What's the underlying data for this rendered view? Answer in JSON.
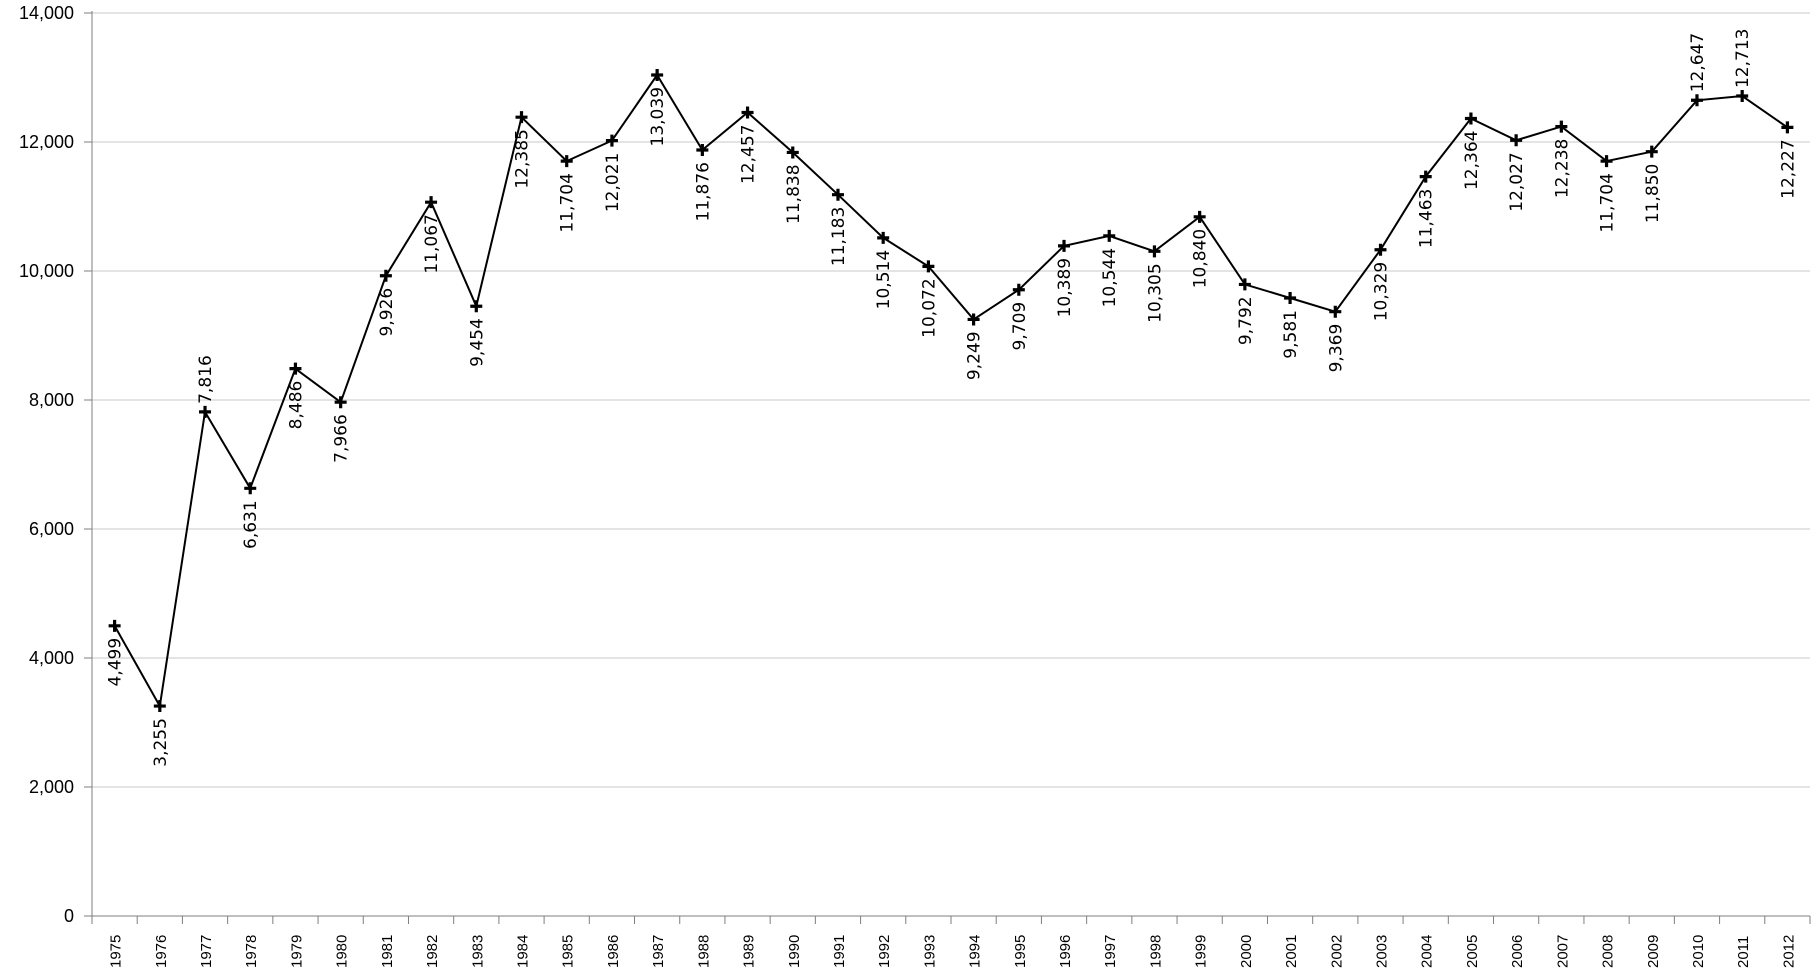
{
  "chart_data": {
    "type": "line",
    "title": "",
    "xlabel": "",
    "ylabel": "",
    "ylim": [
      0,
      14000
    ],
    "yticks": [
      "0",
      "2,000",
      "4,000",
      "6,000",
      "8,000",
      "10,000",
      "12,000",
      "14,000"
    ],
    "grid": "horizontal",
    "legend": "none",
    "categories": [
      "1975",
      "1976",
      "1977",
      "1978",
      "1979",
      "1980",
      "1981",
      "1982",
      "1983",
      "1984",
      "1985",
      "1986",
      "1987",
      "1988",
      "1989",
      "1990",
      "1991",
      "1992",
      "1993",
      "1994",
      "1995",
      "1996",
      "1997",
      "1998",
      "1999",
      "2000",
      "2001",
      "2002",
      "2003",
      "2004",
      "2005",
      "2006",
      "2007",
      "2008",
      "2009",
      "2010",
      "2011",
      "2012"
    ],
    "series": [
      {
        "values": [
          4499,
          3255,
          7816,
          6631,
          8486,
          7966,
          9926,
          11067,
          9454,
          12385,
          11704,
          12021,
          13039,
          11876,
          12457,
          11838,
          11183,
          10514,
          10072,
          9249,
          9709,
          10389,
          10544,
          10305,
          10840,
          9792,
          9581,
          9369,
          10329,
          11463,
          12364,
          12027,
          12238,
          11704,
          11850,
          12647,
          12713,
          12227
        ],
        "labels": [
          "4,499",
          "3,255",
          "7,816",
          "6,631",
          "8,486",
          "7,966",
          "9,926",
          "11,067",
          "9,454",
          "12,385",
          "11,704",
          "12,021",
          "13,039",
          "11,876",
          "12,457",
          "11,838",
          "11,183",
          "10,514",
          "10,072",
          "9,249",
          "9,709",
          "10,389",
          "10,544",
          "10,305",
          "10,840",
          "9,792",
          "9,581",
          "9,369",
          "10,329",
          "11,463",
          "12,364",
          "12,027",
          "12,238",
          "11,704",
          "11,850",
          "12,647",
          "12,713",
          "12,227"
        ],
        "label_side": [
          "below",
          "below",
          "above",
          "below",
          "below",
          "below",
          "below",
          "below",
          "below",
          "below",
          "below",
          "below",
          "below",
          "below",
          "below",
          "below",
          "below",
          "below",
          "below",
          "below",
          "below",
          "below",
          "below",
          "below",
          "below",
          "below",
          "below",
          "below",
          "below",
          "below",
          "below",
          "below",
          "below",
          "below",
          "below",
          "above",
          "above",
          "below"
        ],
        "color": "#000000",
        "marker": "cross"
      }
    ]
  }
}
